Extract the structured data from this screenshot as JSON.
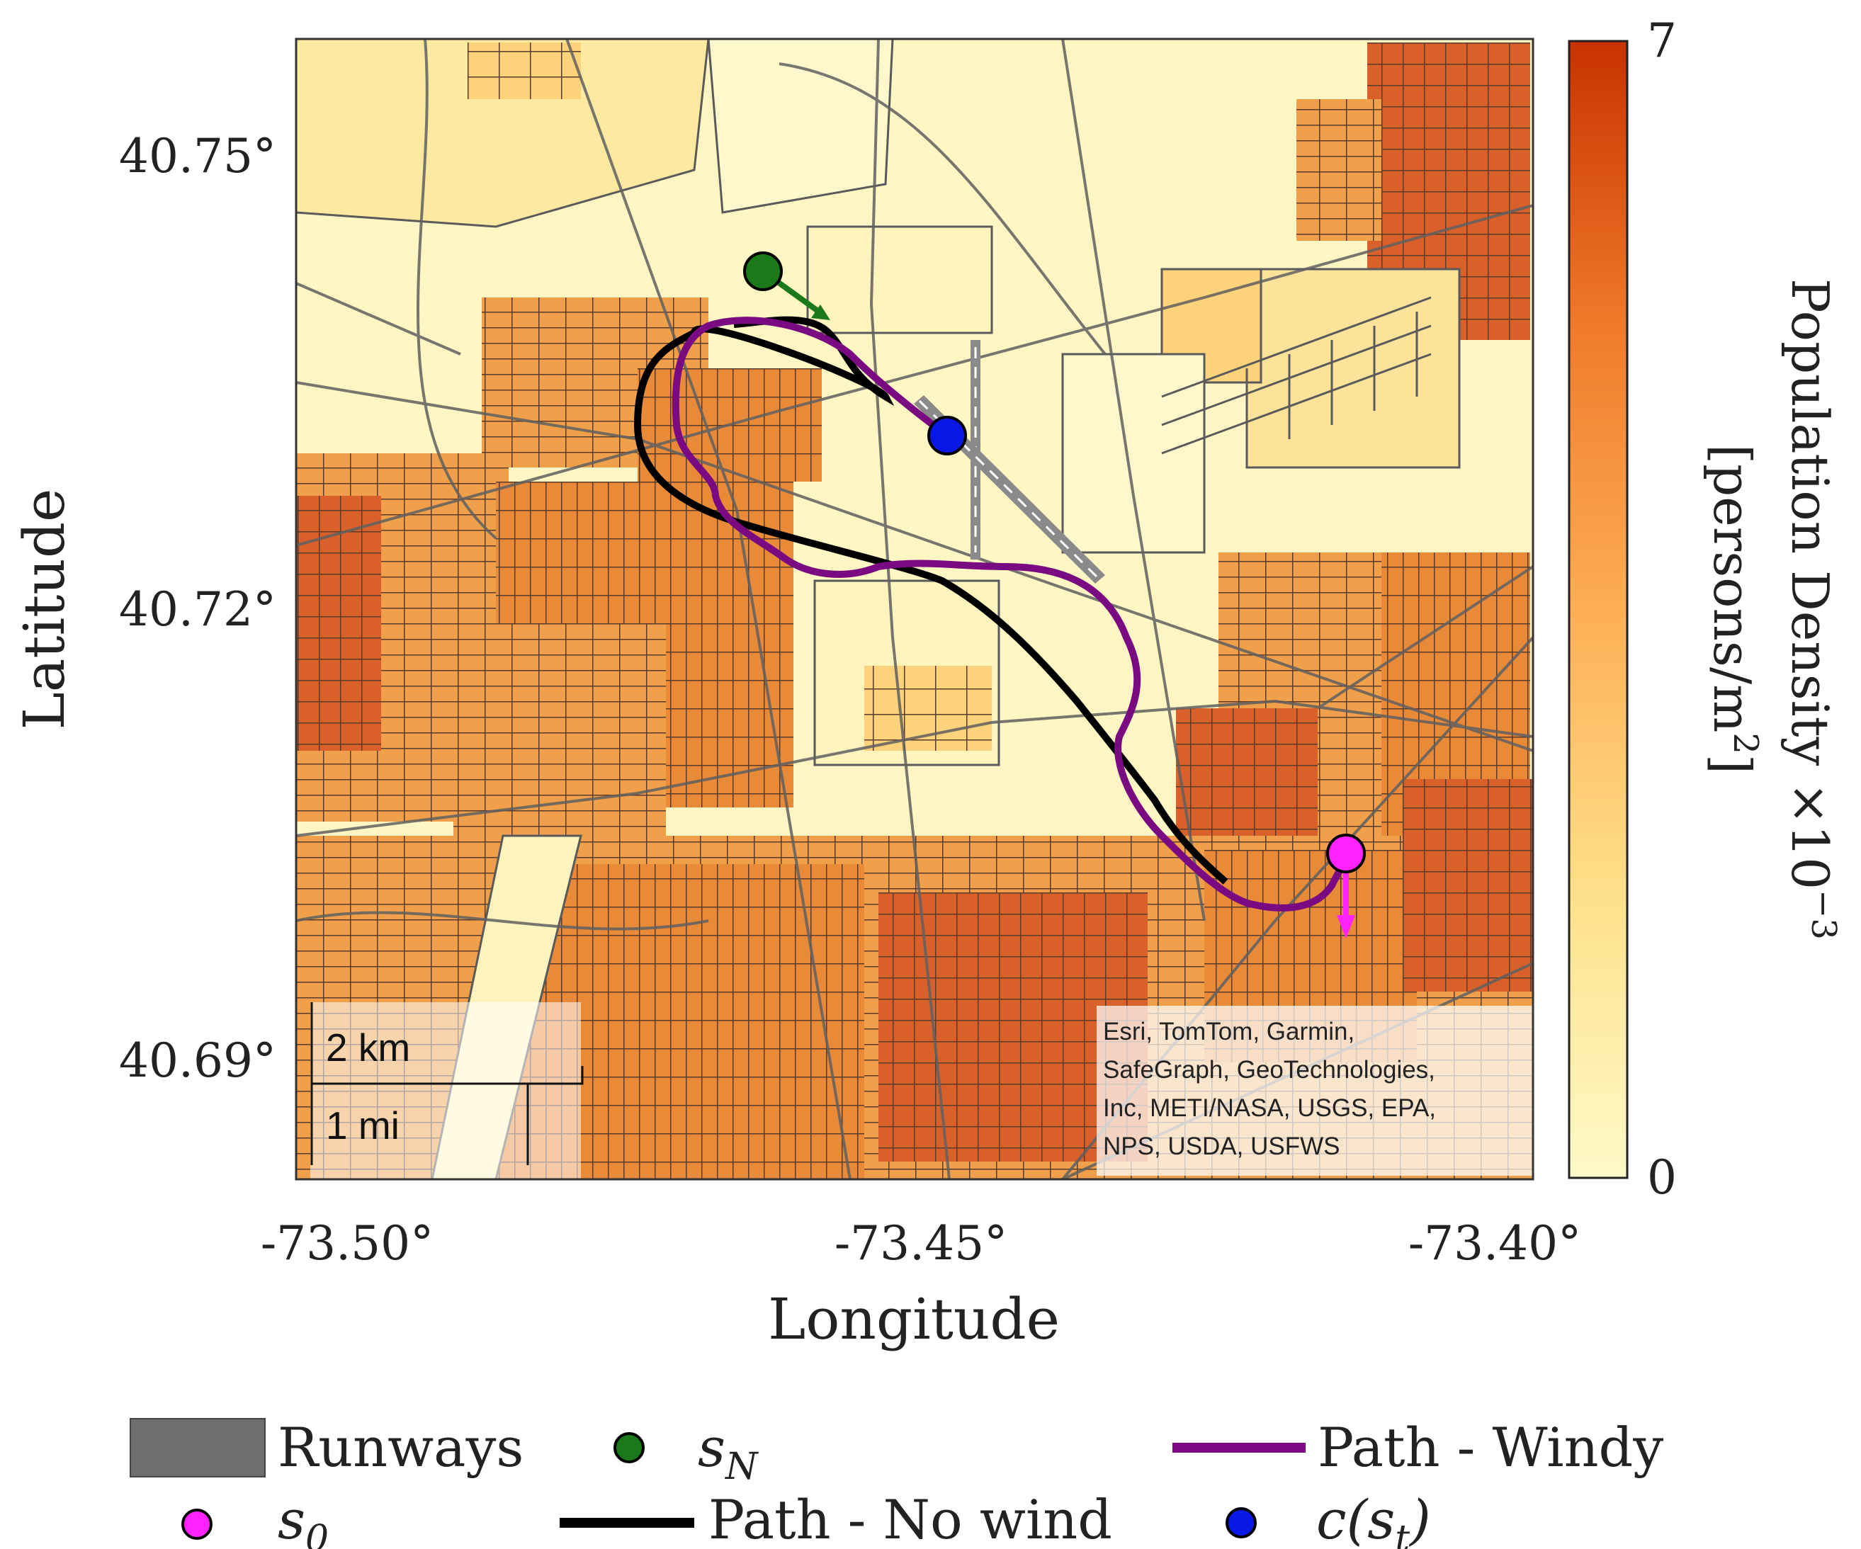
{
  "map": {
    "x_ticks": [
      "-73.50°",
      "-73.45°",
      "-73.40°"
    ],
    "y_ticks": [
      "40.75°",
      "40.72°",
      "40.69°"
    ],
    "xlabel": "Longitude",
    "ylabel": "Latitude",
    "x_range": [
      -73.51,
      -73.4
    ],
    "y_range": [
      40.681,
      40.758
    ],
    "attribution": [
      "Esri, TomTom, Garmin,",
      "SafeGraph, GeoTechnologies,",
      "Inc, METI/NASA, USGS, EPA,",
      "NPS, USDA, USFWS"
    ],
    "scale_km": "2 km",
    "scale_mi": "1 mi"
  },
  "colorbar": {
    "title": "Population Density ×10",
    "title_exp": "−3",
    "units": "[persons/m",
    "units_exp": "2",
    "units_close": "]",
    "max_label": "7",
    "min_label": "0",
    "color_low": "#fffac8",
    "color_high": "#c83200"
  },
  "markers": {
    "s_N": {
      "lon": -73.4687,
      "lat": 40.7454,
      "color": "#1a7a1a",
      "wind_arrow_color": "#1a7a1a"
    },
    "s_0": {
      "lon": -73.4118,
      "lat": 40.7056,
      "color": "#ff22ff",
      "wind_arrow_color": "#ff22ff"
    },
    "c_st": {
      "lon": -73.4524,
      "lat": 40.7306,
      "color": "#0a18e6"
    }
  },
  "paths": {
    "no_wind_color": "#000000",
    "windy_color": "#7a0a82",
    "runway_color": "#8a8a8a"
  },
  "legend": {
    "runways": "Runways",
    "s_N": "s",
    "s_N_sub": "N",
    "windy": "Path - Windy",
    "s_0": "s",
    "s_0_sub": "0",
    "no_wind": "Path - No wind",
    "c_st": "c(s",
    "c_st_sub": "t",
    "c_st_close": ")"
  }
}
